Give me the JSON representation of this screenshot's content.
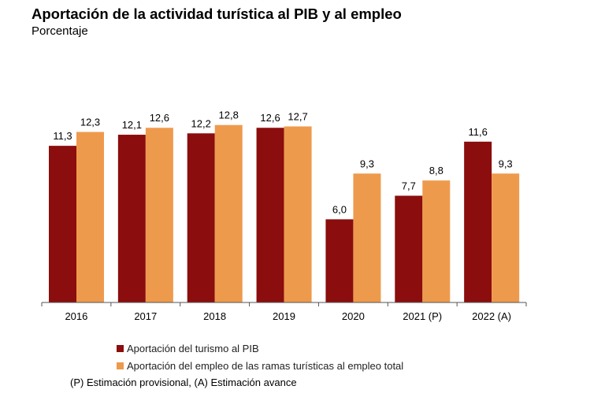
{
  "title": "Aportación de la actividad turística al PIB y al empleo",
  "subtitle": "Porcentaje",
  "note": "(P) Estimación provisional, (A) Estimación avance",
  "colors": {
    "series1": "#8B0D0D",
    "series2": "#EE9A4D"
  },
  "chart_data": {
    "type": "bar",
    "categories": [
      "2016",
      "2017",
      "2018",
      "2019",
      "2020",
      "2021 (P)",
      "2022 (A)"
    ],
    "series": [
      {
        "name": "Aportación del turismo al PIB",
        "values": [
          11.3,
          12.1,
          12.2,
          12.6,
          6.0,
          7.7,
          11.6
        ],
        "labels": [
          "11,3",
          "12,1",
          "12,2",
          "12,6",
          "6,0",
          "7,7",
          "11,6"
        ]
      },
      {
        "name": "Aportación del empleo de las ramas turísticas al empleo total",
        "values": [
          12.3,
          12.6,
          12.8,
          12.7,
          9.3,
          8.8,
          9.3
        ],
        "labels": [
          "12,3",
          "12,6",
          "12,8",
          "12,7",
          "9,3",
          "8,8",
          "9,3"
        ]
      }
    ],
    "ylim": [
      0,
      13.5
    ],
    "grid": false,
    "legend": "bottom"
  }
}
